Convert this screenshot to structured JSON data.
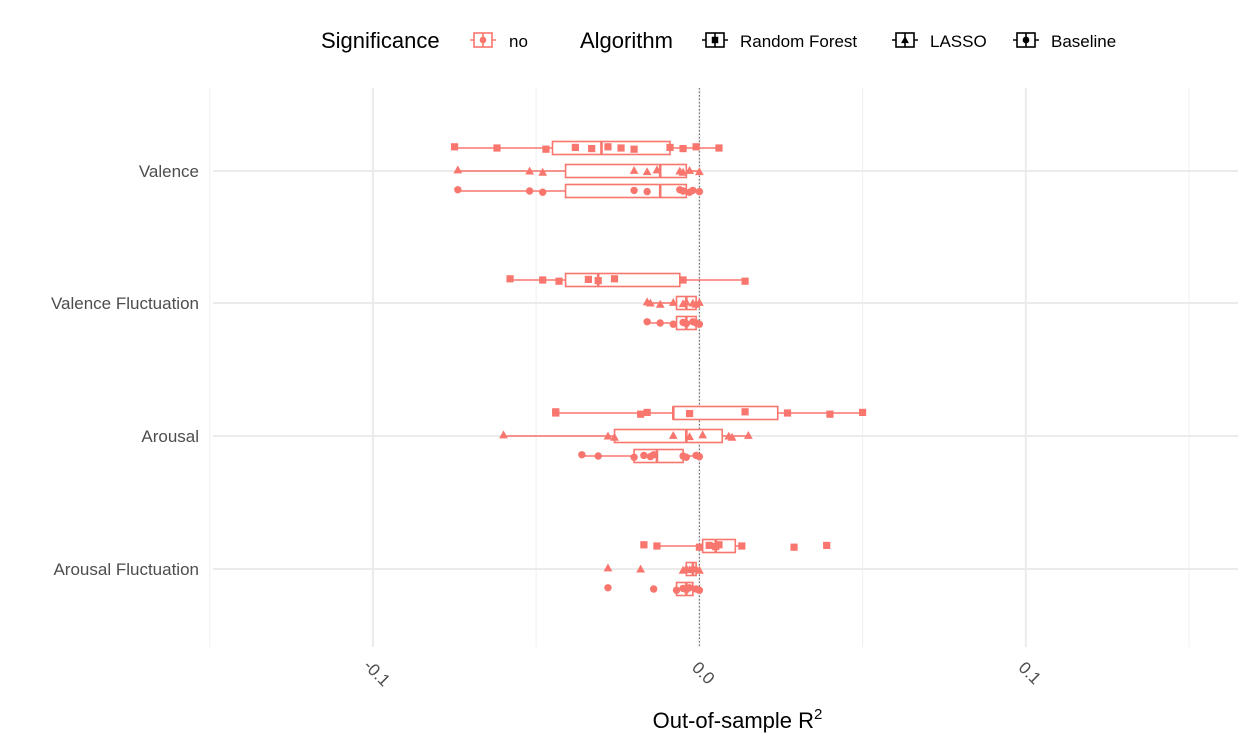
{
  "chart_data": {
    "type": "boxplot",
    "xlabel": "Out-of-sample R",
    "xlabel_superscript": "2",
    "xlim": [
      -0.149,
      0.165
    ],
    "x_ticks": [
      -0.1,
      0.0,
      0.1
    ],
    "x_tick_labels": [
      "-0.1",
      "0.0",
      "0.1"
    ],
    "x_minor_ticks": [
      -0.15,
      -0.05,
      0.05,
      0.15
    ],
    "reference_line_x": 0,
    "grid": true,
    "legend_position": "top",
    "color": "#f8766d",
    "legend": {
      "significance_title": "Significance",
      "significance_items": [
        {
          "label": "no",
          "color": "#f8766d"
        }
      ],
      "algorithm_title": "Algorithm",
      "algorithm_items": [
        {
          "label": "Random Forest",
          "shape": "square"
        },
        {
          "label": "LASSO",
          "shape": "triangle"
        },
        {
          "label": "Baseline",
          "shape": "circle"
        }
      ]
    },
    "categories": [
      "Valence",
      "Valence Fluctuation",
      "Arousal",
      "Arousal Fluctuation"
    ],
    "groups": [
      {
        "category": "Valence",
        "series": [
          {
            "algorithm": "Random Forest",
            "shape": "square",
            "box": {
              "min": -0.075,
              "q1": -0.045,
              "median": -0.03,
              "q3": -0.009,
              "max": 0.006
            },
            "points": [
              -0.075,
              -0.062,
              -0.047,
              -0.038,
              -0.033,
              -0.028,
              -0.024,
              -0.02,
              -0.009,
              -0.005,
              -0.001,
              0.006
            ]
          },
          {
            "algorithm": "LASSO",
            "shape": "triangle",
            "box": {
              "min": -0.074,
              "q1": -0.041,
              "median": -0.012,
              "q3": -0.004,
              "max": 0.0
            },
            "points": [
              -0.074,
              -0.052,
              -0.048,
              -0.02,
              -0.016,
              -0.013,
              -0.006,
              -0.005,
              -0.003,
              0.0
            ]
          },
          {
            "algorithm": "Baseline",
            "shape": "circle",
            "box": {
              "min": -0.074,
              "q1": -0.041,
              "median": -0.012,
              "q3": -0.004,
              "max": 0.0
            },
            "points": [
              -0.074,
              -0.052,
              -0.048,
              -0.02,
              -0.016,
              -0.006,
              -0.005,
              -0.003,
              -0.002,
              0.0
            ]
          }
        ]
      },
      {
        "category": "Valence Fluctuation",
        "series": [
          {
            "algorithm": "Random Forest",
            "shape": "square",
            "box": {
              "min": -0.058,
              "q1": -0.041,
              "median": -0.031,
              "q3": -0.006,
              "max": 0.014
            },
            "points": [
              -0.058,
              -0.048,
              -0.043,
              -0.034,
              -0.031,
              -0.026,
              -0.005,
              0.014
            ]
          },
          {
            "algorithm": "LASSO",
            "shape": "triangle",
            "box": {
              "min": -0.016,
              "q1": -0.007,
              "median": -0.004,
              "q3": -0.001,
              "max": 0.0
            },
            "points": [
              -0.016,
              -0.015,
              -0.012,
              -0.008,
              -0.005,
              -0.004,
              -0.002,
              -0.001,
              0.0
            ]
          },
          {
            "algorithm": "Baseline",
            "shape": "circle",
            "box": {
              "min": -0.016,
              "q1": -0.007,
              "median": -0.004,
              "q3": -0.001,
              "max": 0.0
            },
            "points": [
              -0.016,
              -0.012,
              -0.008,
              -0.005,
              -0.004,
              -0.002,
              -0.001,
              0.0
            ]
          }
        ]
      },
      {
        "category": "Arousal",
        "series": [
          {
            "algorithm": "Random Forest",
            "shape": "square",
            "box": {
              "min": -0.044,
              "q1": -0.008,
              "median": -0.008,
              "q3": 0.024,
              "max": 0.05
            },
            "points": [
              -0.044,
              -0.044,
              -0.018,
              -0.016,
              -0.003,
              0.014,
              0.027,
              0.04,
              0.05
            ]
          },
          {
            "algorithm": "LASSO",
            "shape": "triangle",
            "box": {
              "min": -0.06,
              "q1": -0.026,
              "median": -0.004,
              "q3": 0.007,
              "max": 0.015
            },
            "points": [
              -0.06,
              -0.028,
              -0.026,
              -0.008,
              -0.003,
              0.001,
              0.009,
              0.01,
              0.015
            ]
          },
          {
            "algorithm": "Baseline",
            "shape": "circle",
            "box": {
              "min": -0.036,
              "q1": -0.02,
              "median": -0.013,
              "q3": -0.005,
              "max": 0.0
            },
            "points": [
              -0.036,
              -0.031,
              -0.02,
              -0.017,
              -0.015,
              -0.014,
              -0.005,
              -0.004,
              -0.001,
              0.0
            ]
          }
        ]
      },
      {
        "category": "Arousal Fluctuation",
        "series": [
          {
            "algorithm": "Random Forest",
            "shape": "square",
            "box": {
              "min": -0.013,
              "q1": 0.001,
              "median": 0.005,
              "q3": 0.011,
              "max": 0.012
            },
            "points": [
              -0.017,
              -0.013,
              0.0,
              0.003,
              0.005,
              0.006,
              0.013,
              0.029,
              0.039
            ]
          },
          {
            "algorithm": "LASSO",
            "shape": "triangle",
            "box": {
              "min": -0.005,
              "q1": -0.004,
              "median": -0.002,
              "q3": -0.001,
              "max": 0.0
            },
            "points": [
              -0.028,
              -0.018,
              -0.005,
              -0.004,
              -0.003,
              -0.002,
              -0.001,
              0.0
            ]
          },
          {
            "algorithm": "Baseline",
            "shape": "circle",
            "box": {
              "min": -0.007,
              "q1": -0.007,
              "median": -0.004,
              "q3": -0.002,
              "max": 0.0
            },
            "points": [
              -0.028,
              -0.014,
              -0.007,
              -0.005,
              -0.004,
              -0.003,
              -0.001,
              0.0
            ]
          }
        ]
      }
    ]
  }
}
